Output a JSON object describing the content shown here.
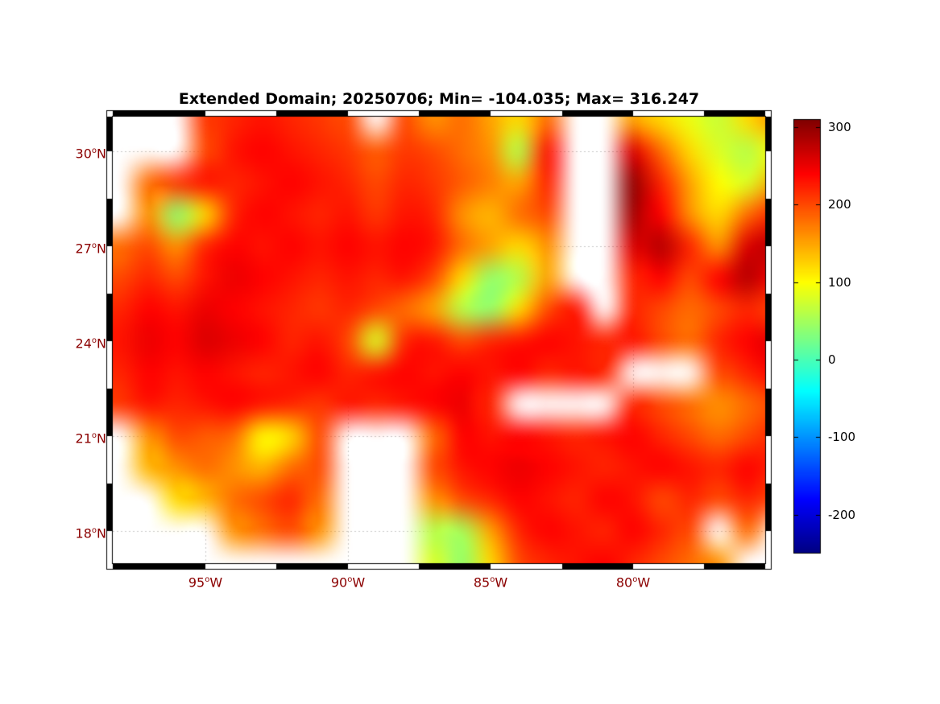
{
  "title": "Extended Domain; 20250706; Min= -104.035; Max= 316.247",
  "axes": {
    "degree_char": "o",
    "lat_ticks": [
      {
        "num": "30",
        "hemi": "N"
      },
      {
        "num": "27",
        "hemi": "N"
      },
      {
        "num": "24",
        "hemi": "N"
      },
      {
        "num": "21",
        "hemi": "N"
      },
      {
        "num": "18",
        "hemi": "N"
      }
    ],
    "lon_ticks": [
      {
        "num": "95",
        "hemi": "W"
      },
      {
        "num": "90",
        "hemi": "W"
      },
      {
        "num": "85",
        "hemi": "W"
      },
      {
        "num": "80",
        "hemi": "W"
      }
    ],
    "tick_color": "#8B0000",
    "grid_color": "#c9c9c9"
  },
  "colorbar": {
    "ticks": [
      "300",
      "200",
      "100",
      "0",
      "-100",
      "-200"
    ],
    "vmin": -250,
    "vmax": 310,
    "colormap": "jet"
  },
  "chart_data": {
    "type": "heatmap",
    "title": "Extended Domain; 20250706; Min= -104.035; Max= 316.247",
    "date": "20250706",
    "min": -104.035,
    "max": 316.247,
    "colormap": "jet",
    "color_range": [
      -250,
      310
    ],
    "lon_range": [
      -98.3,
      -75.4
    ],
    "lat_range": [
      17.0,
      31.1
    ],
    "grid_lons": [
      -95,
      -90,
      -85,
      -80
    ],
    "grid_lats": [
      30,
      27,
      24,
      21,
      18
    ],
    "lon": [
      -98,
      -97,
      -96,
      -95,
      -94,
      -93,
      -92,
      -91,
      -90,
      -89,
      -88,
      -87,
      -86,
      -85,
      -84,
      -83,
      -82,
      -81,
      -80,
      -79,
      -78,
      -77,
      -76,
      -75
    ],
    "lat": [
      31,
      30,
      29,
      28,
      27,
      26,
      25,
      24,
      23,
      22,
      21,
      20,
      19,
      18,
      17
    ],
    "values": [
      [
        null,
        null,
        null,
        210,
        220,
        230,
        220,
        210,
        200,
        null,
        200,
        160,
        180,
        150,
        120,
        180,
        null,
        null,
        150,
        120,
        90,
        70,
        120,
        160
      ],
      [
        null,
        null,
        null,
        200,
        230,
        240,
        230,
        220,
        210,
        190,
        210,
        200,
        180,
        160,
        60,
        230,
        null,
        null,
        260,
        180,
        120,
        80,
        60,
        100
      ],
      [
        null,
        180,
        210,
        230,
        220,
        230,
        240,
        230,
        220,
        200,
        220,
        210,
        190,
        170,
        150,
        220,
        null,
        null,
        300,
        220,
        150,
        100,
        80,
        150
      ],
      [
        null,
        160,
        40,
        120,
        220,
        240,
        230,
        220,
        230,
        210,
        230,
        220,
        160,
        140,
        180,
        200,
        null,
        null,
        290,
        240,
        160,
        120,
        180,
        220
      ],
      [
        180,
        200,
        160,
        220,
        240,
        230,
        240,
        230,
        240,
        230,
        240,
        230,
        180,
        150,
        120,
        160,
        null,
        null,
        260,
        280,
        220,
        160,
        260,
        280
      ],
      [
        200,
        220,
        200,
        230,
        250,
        240,
        230,
        220,
        230,
        220,
        230,
        200,
        120,
        40,
        60,
        150,
        null,
        null,
        220,
        240,
        200,
        240,
        280,
        240
      ],
      [
        220,
        240,
        230,
        250,
        240,
        230,
        220,
        210,
        220,
        200,
        180,
        150,
        60,
        40,
        120,
        200,
        230,
        null,
        220,
        200,
        180,
        200,
        220,
        200
      ],
      [
        230,
        250,
        240,
        260,
        250,
        240,
        220,
        230,
        200,
        80,
        220,
        230,
        200,
        220,
        230,
        240,
        230,
        220,
        230,
        200,
        180,
        220,
        240,
        260
      ],
      [
        220,
        240,
        230,
        240,
        230,
        220,
        230,
        240,
        220,
        230,
        240,
        230,
        240,
        230,
        240,
        220,
        230,
        220,
        null,
        null,
        null,
        200,
        220,
        240
      ],
      [
        210,
        230,
        220,
        230,
        240,
        230,
        220,
        210,
        230,
        220,
        230,
        240,
        250,
        220,
        null,
        null,
        null,
        null,
        220,
        200,
        180,
        160,
        180,
        200
      ],
      [
        null,
        160,
        200,
        190,
        180,
        100,
        120,
        200,
        null,
        null,
        null,
        180,
        240,
        230,
        240,
        230,
        220,
        230,
        240,
        220,
        200,
        180,
        200,
        220
      ],
      [
        null,
        140,
        160,
        180,
        160,
        140,
        180,
        200,
        null,
        null,
        null,
        200,
        230,
        240,
        250,
        240,
        230,
        220,
        230,
        240,
        230,
        220,
        240,
        220
      ],
      [
        null,
        null,
        120,
        140,
        180,
        200,
        220,
        180,
        null,
        null,
        null,
        160,
        200,
        220,
        240,
        230,
        220,
        240,
        230,
        200,
        220,
        200,
        220,
        200
      ],
      [
        null,
        null,
        null,
        null,
        160,
        180,
        200,
        160,
        null,
        null,
        null,
        60,
        50,
        150,
        220,
        240,
        230,
        220,
        240,
        220,
        200,
        null,
        180,
        null
      ],
      [
        null,
        null,
        null,
        null,
        null,
        null,
        null,
        null,
        null,
        null,
        null,
        80,
        40,
        120,
        200,
        220,
        230,
        240,
        220,
        200,
        180,
        160,
        null,
        null
      ]
    ]
  }
}
